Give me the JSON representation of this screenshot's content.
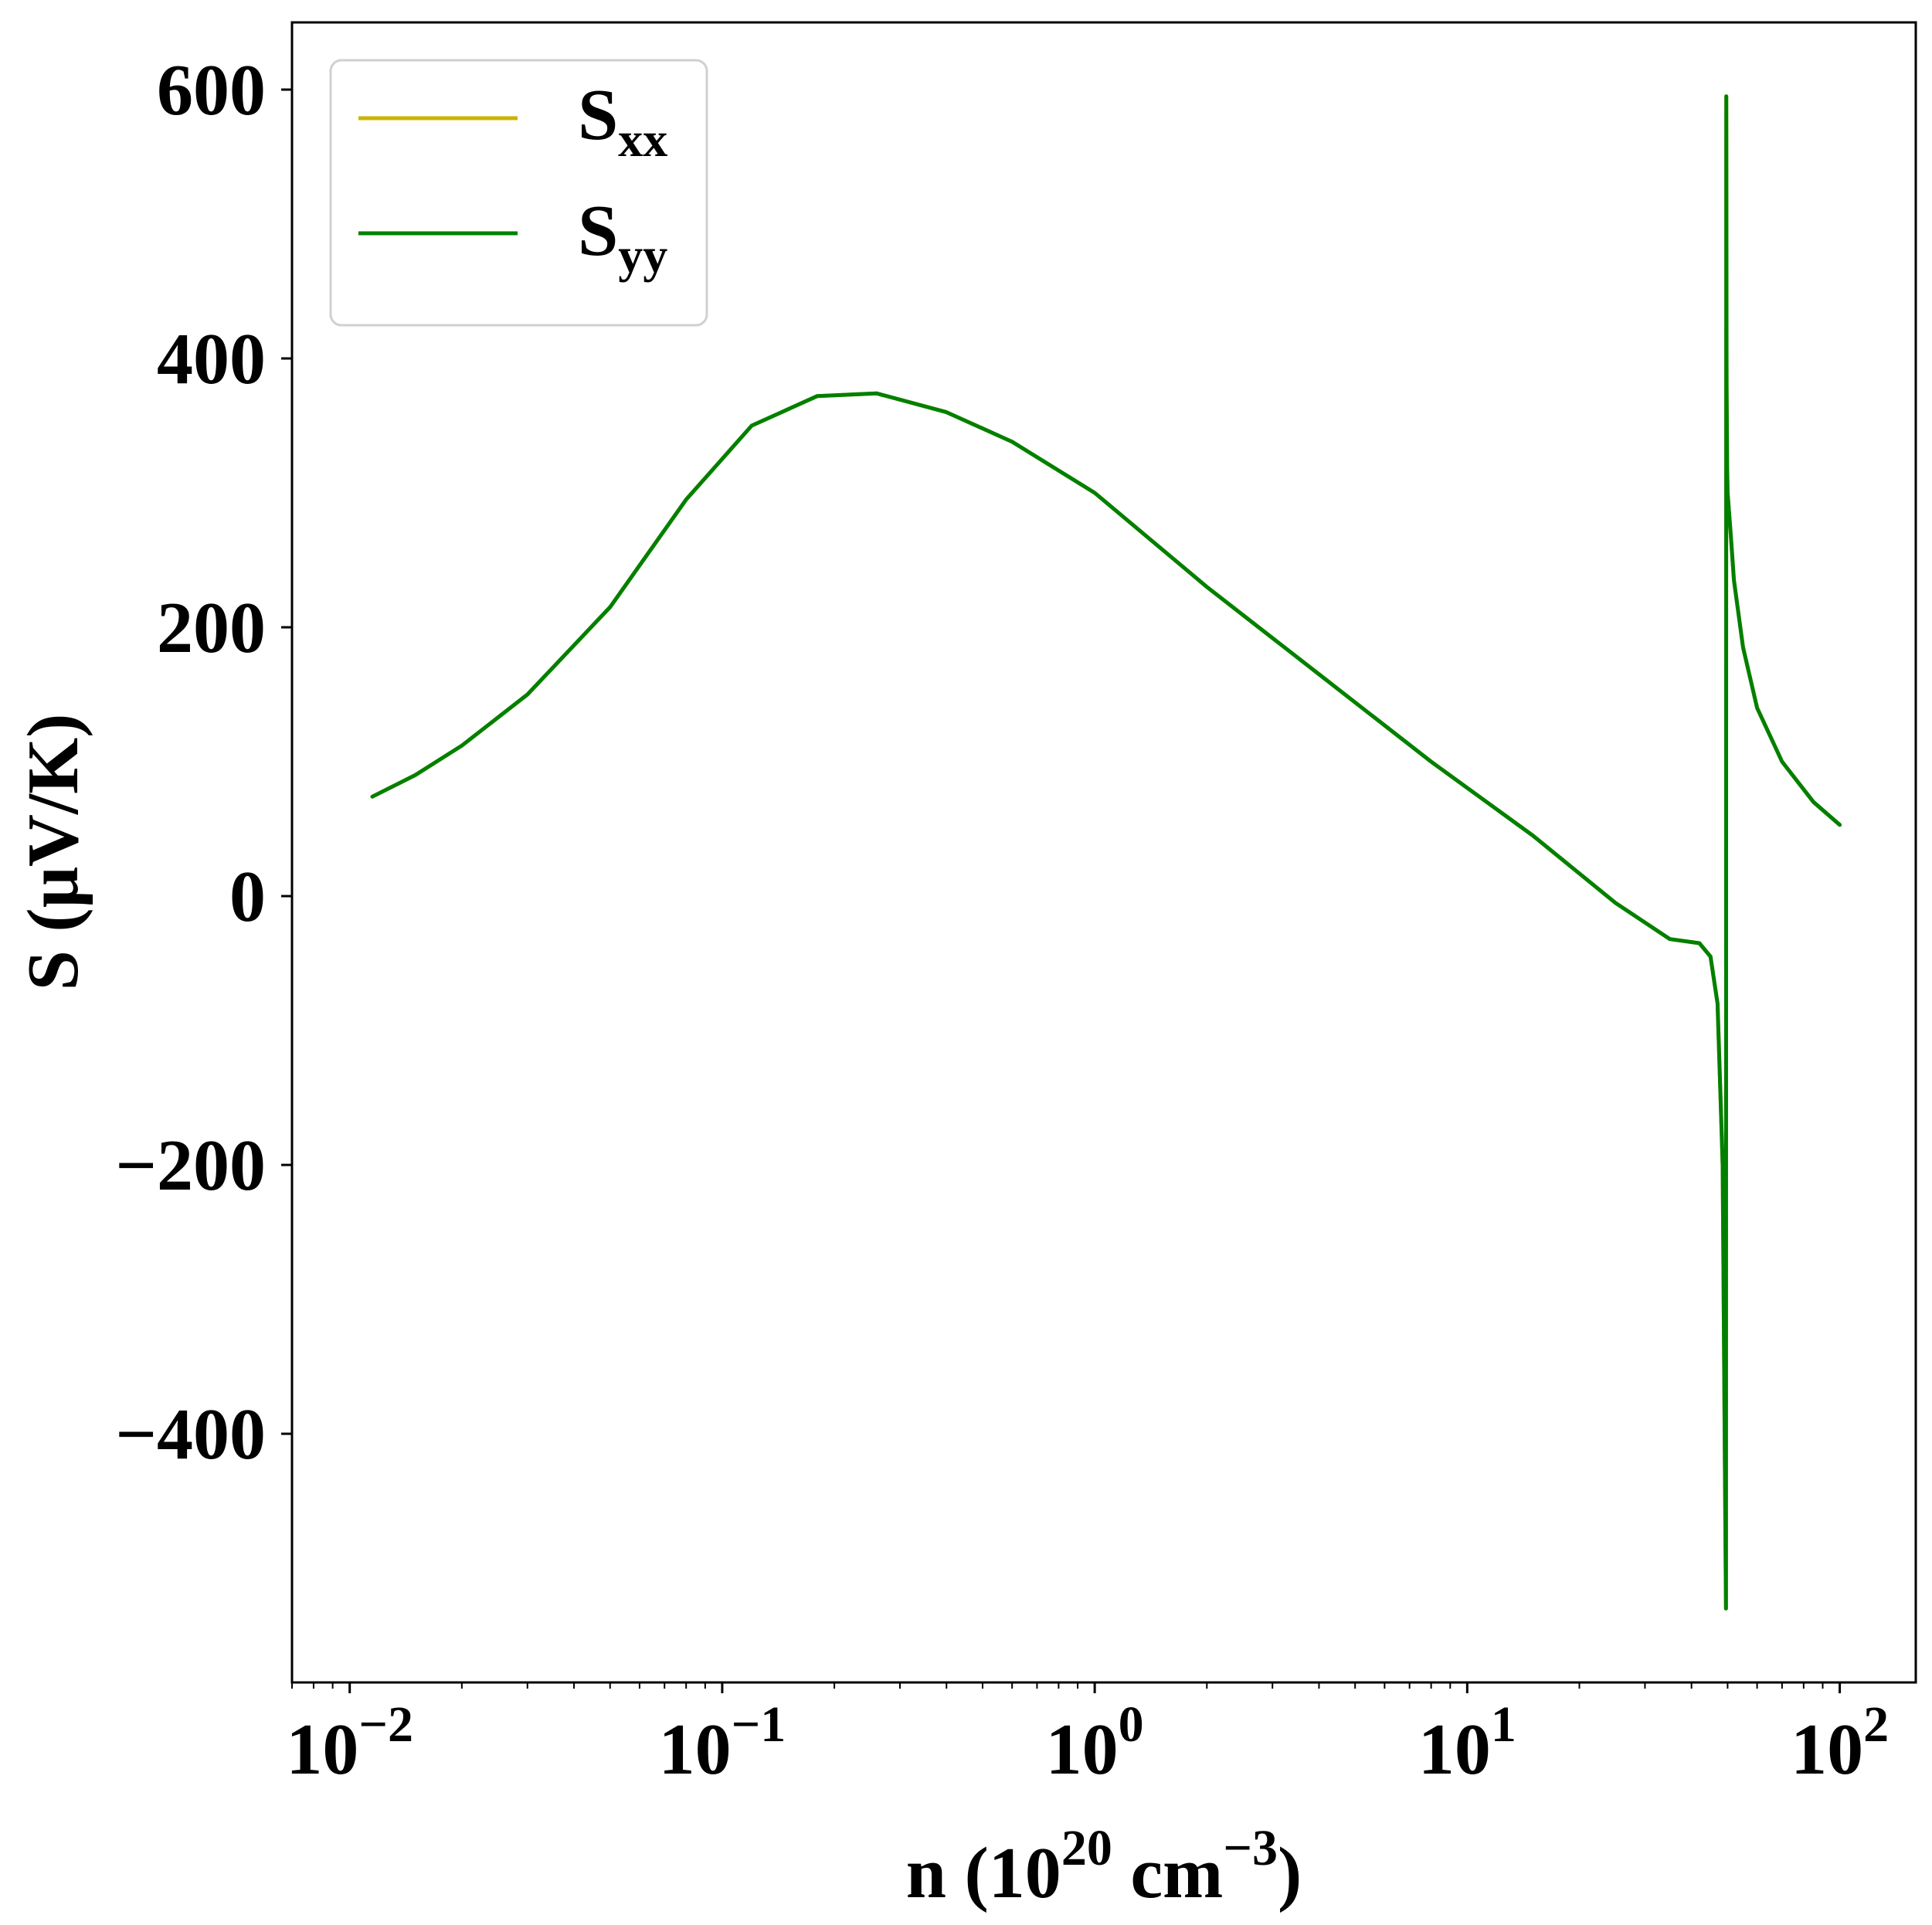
{
  "chart_data": {
    "type": "line",
    "title": "",
    "xscale": "log",
    "xlim": [
      0.007,
      160
    ],
    "ylim": [
      -585,
      650
    ],
    "grid": false,
    "legend_position": "top-left",
    "xlabel": {
      "main": "n (10",
      "sup1": "20",
      "mid": " cm",
      "sup2": "−3",
      "end": ")"
    },
    "ylabel": "S (μV/K)",
    "x_ticks": [
      {
        "value": 0.01,
        "base": "10",
        "exp": "−2"
      },
      {
        "value": 0.1,
        "base": "10",
        "exp": "−1"
      },
      {
        "value": 1,
        "base": "10",
        "exp": "0"
      },
      {
        "value": 10,
        "base": "10",
        "exp": "1"
      },
      {
        "value": 100,
        "base": "10",
        "exp": "2"
      }
    ],
    "y_ticks": [
      {
        "value": 600,
        "label": "600"
      },
      {
        "value": 400,
        "label": "400"
      },
      {
        "value": 200,
        "label": "200"
      },
      {
        "value": 0,
        "label": "0"
      },
      {
        "value": -200,
        "label": "−200"
      },
      {
        "value": -400,
        "label": "−400"
      }
    ],
    "series": [
      {
        "name": "S",
        "subscript": "xx",
        "color": "#c8b400",
        "x": [
          0.0115,
          0.015,
          0.02,
          0.03,
          0.05,
          0.08,
          0.12,
          0.18,
          0.26,
          0.4,
          0.6,
          1,
          2,
          4,
          8,
          15,
          25,
          35,
          42,
          45,
          47,
          48.5,
          49.5,
          49.6,
          49.7,
          49.85,
          50,
          51,
          52,
          55,
          60,
          70,
          85,
          100
        ],
        "y": [
          74,
          90,
          112,
          150,
          215,
          295,
          350,
          372,
          374,
          360,
          338,
          300,
          230,
          165,
          100,
          45,
          -5,
          -32,
          -35,
          -45,
          -80,
          -200,
          -530,
          595,
          380,
          320,
          300,
          268,
          235,
          185,
          140,
          100,
          70,
          53
        ]
      },
      {
        "name": "S",
        "subscript": "yy",
        "color": "#008000",
        "x": [
          0.0115,
          0.015,
          0.02,
          0.03,
          0.05,
          0.08,
          0.12,
          0.18,
          0.26,
          0.4,
          0.6,
          1,
          2,
          4,
          8,
          15,
          25,
          35,
          42,
          45,
          47,
          48.5,
          49.5,
          49.6,
          49.7,
          49.85,
          50,
          51,
          52,
          55,
          60,
          70,
          85,
          100
        ],
        "y": [
          74,
          90,
          112,
          150,
          215,
          295,
          350,
          372,
          374,
          360,
          338,
          300,
          230,
          165,
          100,
          45,
          -5,
          -32,
          -35,
          -45,
          -80,
          -200,
          -530,
          595,
          380,
          320,
          300,
          268,
          235,
          185,
          140,
          100,
          70,
          53
        ]
      }
    ]
  }
}
